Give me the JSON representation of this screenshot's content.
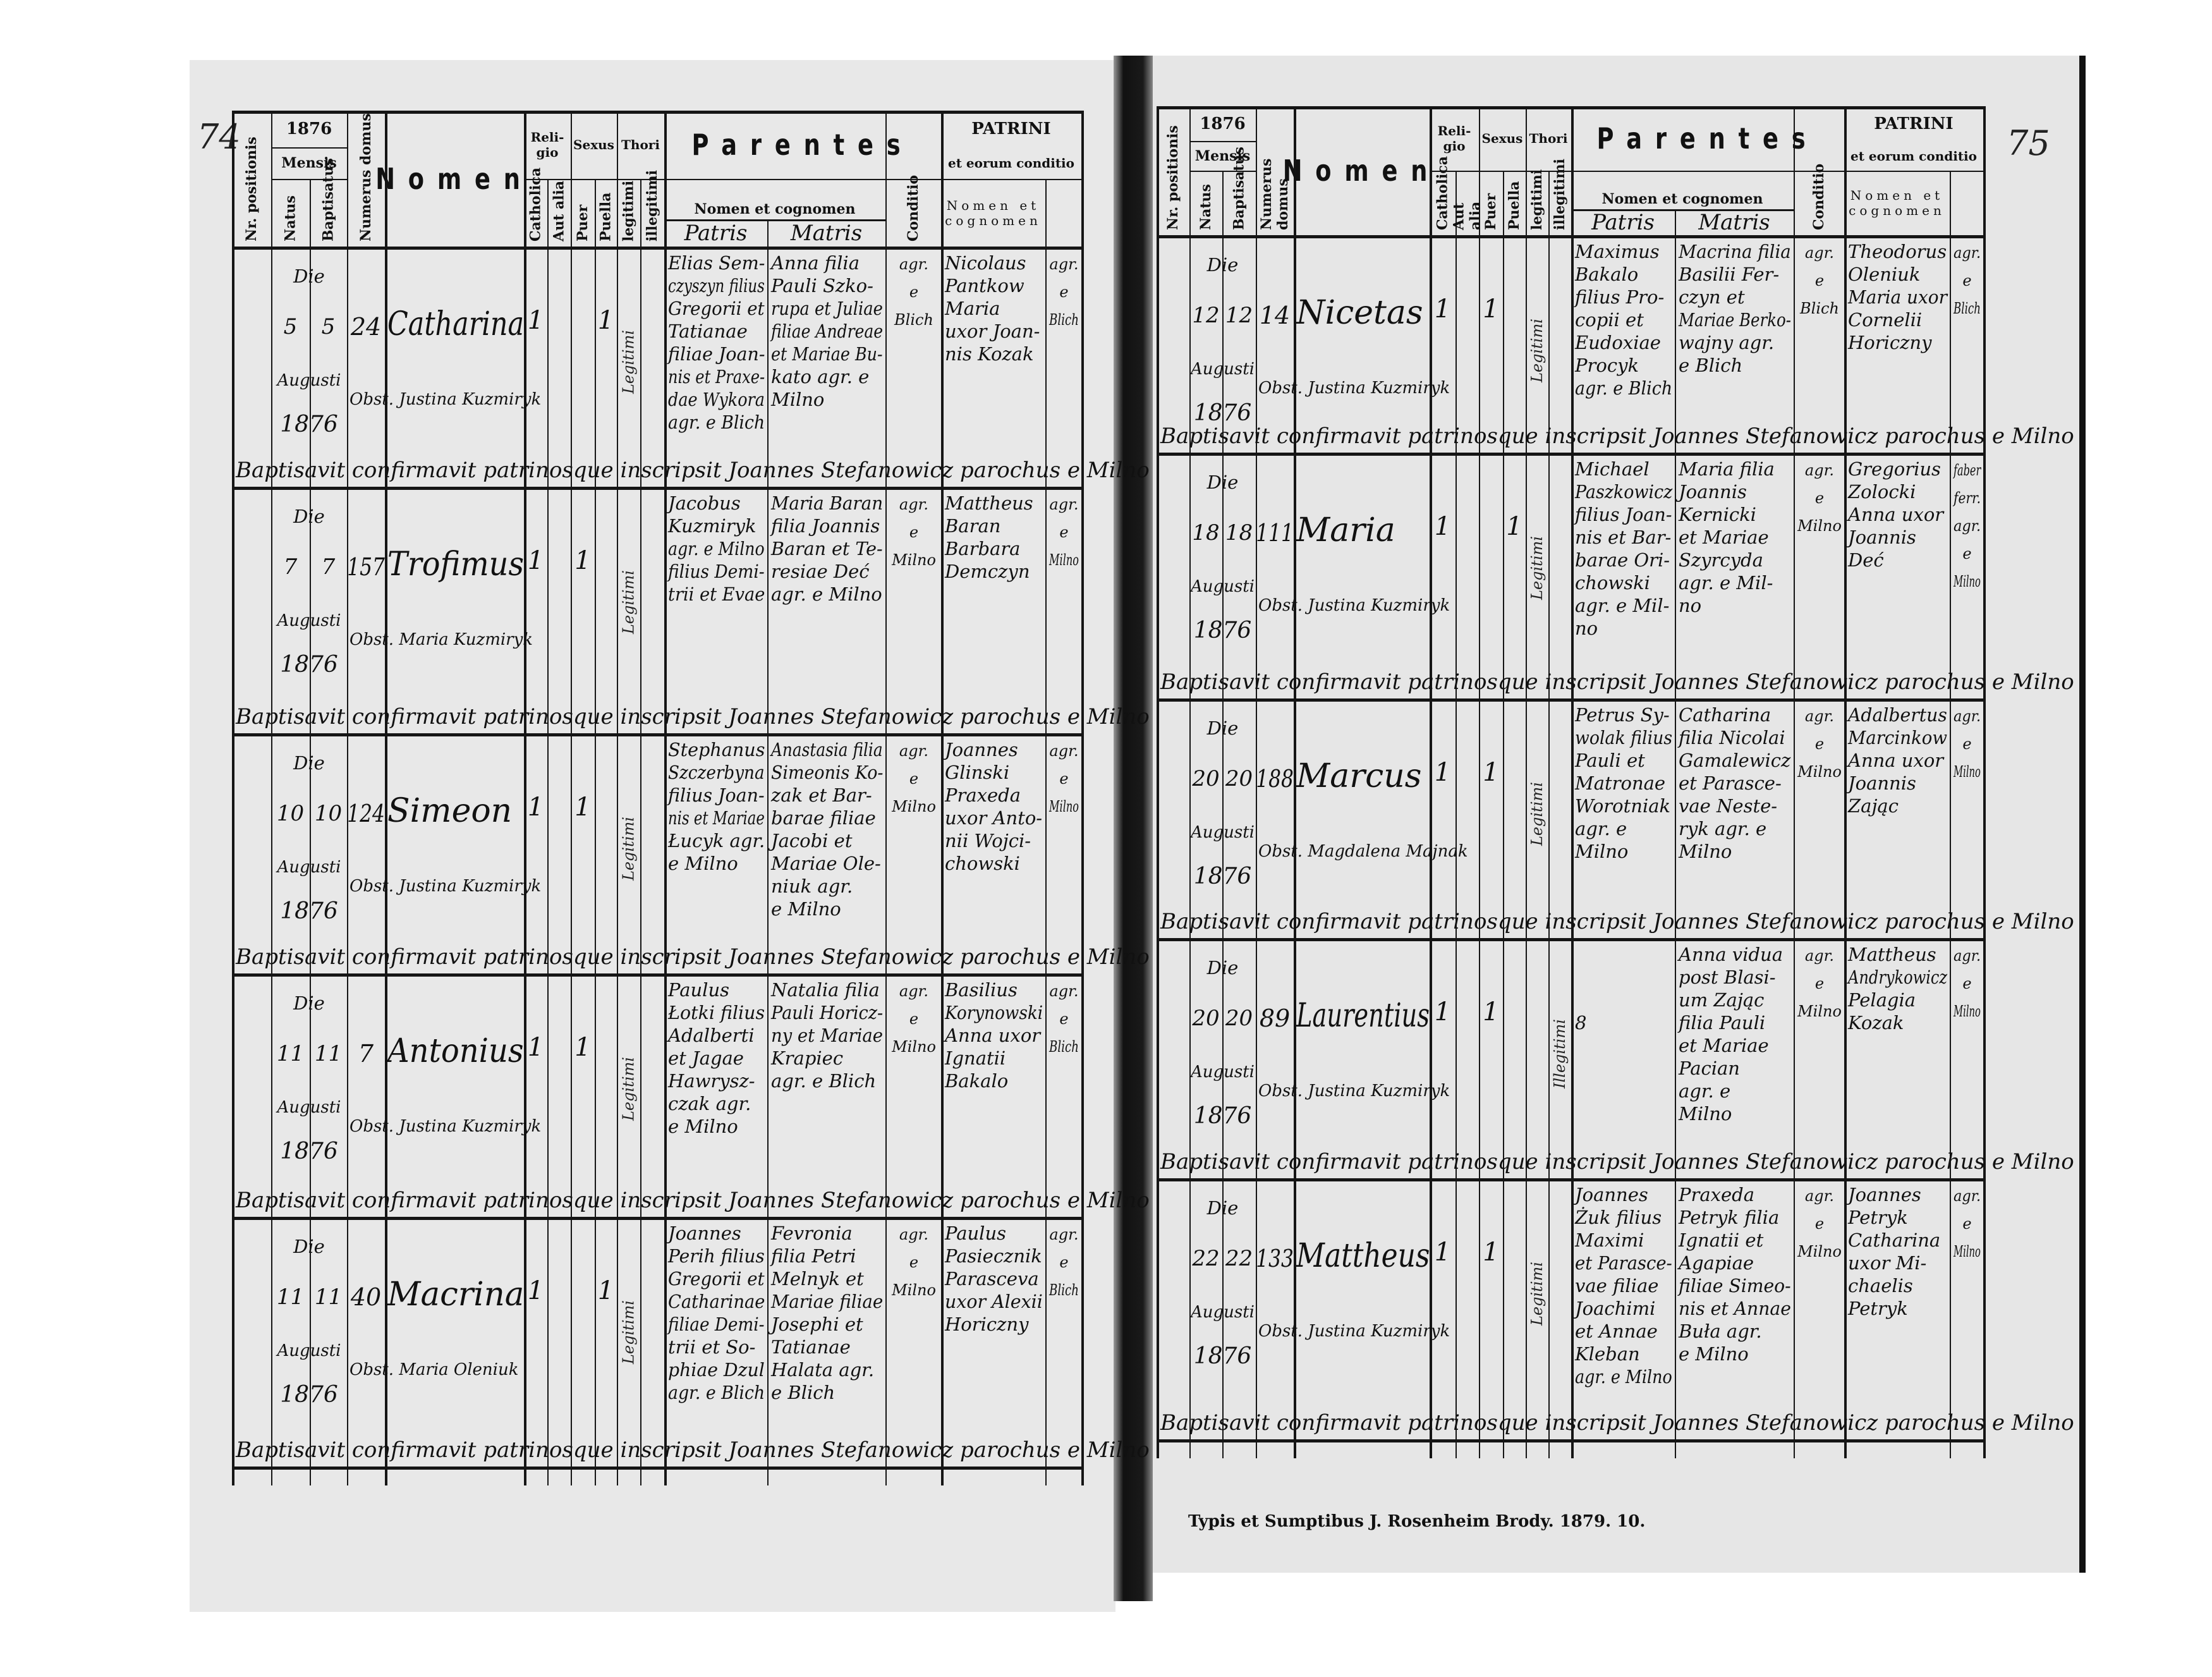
{
  "header": {
    "year": "1876",
    "nr_positionis": "Nr. positionis",
    "mensis": "Mensis",
    "natus": "Natus",
    "baptisatus": "Baptisatus",
    "numerus_domus": "Numerus domus",
    "nomen": "Nomen",
    "religio": "Reli- gio",
    "catholica": "Catholica",
    "aut_alia": "Aut alia",
    "sexus": "Sexus",
    "puer": "Puer",
    "puella": "Puella",
    "thori": "Thori",
    "legitimi": "legitimi",
    "illegitimi": "illegitimi",
    "parentes": "Parentes",
    "nomen_et_cognomen": "Nomen et cognomen",
    "patris": "Patris",
    "matris": "Matris",
    "conditio": "Conditio",
    "patrini": "PATRINI",
    "patrini_sub": "et eorum conditio",
    "patrini_nomen": "Nomen et cognomen"
  },
  "pages": [
    {
      "page_number": "74",
      "entries": [
        {
          "die": "Die",
          "natus": "5",
          "baptisatus": "5",
          "mensis": "Augusti",
          "annus": "1876",
          "domus": "24",
          "nomen": "Catharina",
          "obstetrix": "Obst. Justina Kuzmiryk",
          "catholica": "1",
          "puer": "",
          "puella": "1",
          "legitimi": "Legitimi",
          "illegitimi": "",
          "patris": [
            "Elias Sem-",
            "czyszyn filius",
            "Gregorii et",
            "Tatianae",
            "filiae Joan-",
            "nis et Praxe-",
            "dae Wykora",
            "agr. e Blich"
          ],
          "matris": [
            "Anna filia",
            "Pauli Szko-",
            "rupa et Juliae",
            "filiae Andreae",
            "et Mariae Bu-",
            "kato agr. e",
            "Milno"
          ],
          "conditio": [
            "agr.",
            "e",
            "Blich"
          ],
          "patrini": [
            "Nicolaus",
            "Pantkow",
            "Maria",
            "uxor Joan-",
            "nis Kozak"
          ],
          "patrini_conditio": [
            "agr.",
            "e",
            "Blich"
          ],
          "baptisavit": "Baptisavit confirmavit patrinosque inscripsit Joannes Stefanowicz parochus e Milno"
        },
        {
          "die": "Die",
          "natus": "7",
          "baptisatus": "7",
          "mensis": "Augusti",
          "annus": "1876",
          "domus": "157",
          "nomen": "Trofimus",
          "obstetrix": "Obst. Maria Kuzmiryk",
          "catholica": "1",
          "puer": "1",
          "puella": "",
          "legitimi": "Legitimi",
          "illegitimi": "",
          "patris": [
            "Jacobus",
            "Kuzmiryk",
            "agr. e Milno",
            "filius Demi-",
            "trii et Evae"
          ],
          "matris": [
            "Maria Baran",
            "filia Joannis",
            "Baran et Te-",
            "resiae Deć",
            "agr. e Milno"
          ],
          "conditio": [
            "agr.",
            "e",
            "Milno"
          ],
          "patrini": [
            "Mattheus",
            "Baran",
            "Barbara",
            "Demczyn"
          ],
          "patrini_conditio": [
            "agr.",
            "e",
            "Milno"
          ],
          "baptisavit": "Baptisavit confirmavit patrinosque inscripsit Joannes Stefanowicz parochus e Milno"
        },
        {
          "die": "Die",
          "natus": "10",
          "baptisatus": "10",
          "mensis": "Augusti",
          "annus": "1876",
          "domus": "124",
          "nomen": "Simeon",
          "obstetrix": "Obst. Justina Kuzmiryk",
          "catholica": "1",
          "puer": "1",
          "puella": "",
          "legitimi": "Legitimi",
          "illegitimi": "",
          "patris": [
            "Stephanus",
            "Szczerbyna",
            "filius Joan-",
            "nis et Mariae",
            "Łucyk agr.",
            "e Milno"
          ],
          "matris": [
            "Anastasia filia",
            "Simeonis Ko-",
            "zak et Bar-",
            "barae filiae",
            "Jacobi et",
            "Mariae Ole-",
            "niuk agr.",
            "e Milno"
          ],
          "conditio": [
            "agr.",
            "e",
            "Milno"
          ],
          "patrini": [
            "Joannes",
            "Glinski",
            "Praxeda",
            "uxor Anto-",
            "nii Wojci-",
            "chowski"
          ],
          "patrini_conditio": [
            "agr.",
            "e",
            "Milno"
          ],
          "baptisavit": "Baptisavit confirmavit patrinosque inscripsit Joannes Stefanowicz parochus e Milno"
        },
        {
          "die": "Die",
          "natus": "11",
          "baptisatus": "11",
          "mensis": "Augusti",
          "annus": "1876",
          "domus": "7",
          "nomen": "Antonius",
          "obstetrix": "Obst. Justina Kuzmiryk",
          "catholica": "1",
          "puer": "1",
          "puella": "",
          "legitimi": "Legitimi",
          "illegitimi": "",
          "patris": [
            "Paulus",
            "Łotki filius",
            "Adalberti",
            "et Jagae",
            "Hawrysz-",
            "czak agr.",
            "e Milno"
          ],
          "matris": [
            "Natalia filia",
            "Pauli Horicz-",
            "ny et Mariae",
            "Krapiec",
            "agr. e Blich"
          ],
          "conditio": [
            "agr.",
            "e",
            "Milno"
          ],
          "patrini": [
            "Basilius",
            "Korynowski",
            "Anna uxor",
            "Ignatii",
            "Bakalo"
          ],
          "patrini_conditio": [
            "agr.",
            "e",
            "Blich"
          ],
          "baptisavit": "Baptisavit confirmavit patrinosque inscripsit Joannes Stefanowicz parochus e Milno"
        },
        {
          "die": "Die",
          "natus": "11",
          "baptisatus": "11",
          "mensis": "Augusti",
          "annus": "1876",
          "domus": "40",
          "nomen": "Macrina",
          "obstetrix": "Obst. Maria Oleniuk",
          "catholica": "1",
          "puer": "",
          "puella": "1",
          "legitimi": "Legitimi",
          "illegitimi": "",
          "patris": [
            "Joannes",
            "Perih filius",
            "Gregorii et",
            "Catharinae",
            "filiae Demi-",
            "trii et So-",
            "phiae Dzul",
            "agr. e Blich"
          ],
          "matris": [
            "Fevronia",
            "filia Petri",
            "Melnyk et",
            "Mariae filiae",
            "Josephi et",
            "Tatianae",
            "Halata agr.",
            "e Blich"
          ],
          "conditio": [
            "agr.",
            "e",
            "Milno"
          ],
          "patrini": [
            "Paulus",
            "Pasiecznik",
            "Parasceva",
            "uxor Alexii",
            "Horiczny"
          ],
          "patrini_conditio": [
            "agr.",
            "e",
            "Blich"
          ],
          "baptisavit": "Baptisavit confirmavit patrinosque inscripsit Joannes Stefanowicz parochus e Milno"
        }
      ]
    },
    {
      "page_number": "75",
      "entries": [
        {
          "die": "Die",
          "natus": "12",
          "baptisatus": "12",
          "mensis": "Augusti",
          "annus": "1876",
          "domus": "14",
          "nomen": "Nicetas",
          "obstetrix": "Obst. Justina Kuzmiryk",
          "catholica": "1",
          "puer": "1",
          "puella": "",
          "legitimi": "Legitimi",
          "illegitimi": "",
          "patris": [
            "Maximus",
            "Bakalo",
            "filius Pro-",
            "copii et",
            "Eudoxiae",
            "Procyk",
            "agr. e Blich"
          ],
          "matris": [
            "Macrina filia",
            "Basilii Fer-",
            "czyn et",
            "Mariae Berko-",
            "wajny agr.",
            "e Blich"
          ],
          "conditio": [
            "agr.",
            "e",
            "Blich"
          ],
          "patrini": [
            "Theodorus",
            "Oleniuk",
            "Maria uxor",
            "Cornelii",
            "Horiczny"
          ],
          "patrini_conditio": [
            "agr.",
            "e",
            "Blich"
          ],
          "baptisavit": "Baptisavit confirmavit patrinosque inscripsit Joannes Stefanowicz parochus e Milno"
        },
        {
          "die": "Die",
          "natus": "18",
          "baptisatus": "18",
          "mensis": "Augusti",
          "annus": "1876",
          "domus": "111",
          "nomen": "Maria",
          "obstetrix": "Obst. Justina Kuzmiryk",
          "catholica": "1",
          "puer": "",
          "puella": "1",
          "legitimi": "Legitimi",
          "illegitimi": "",
          "patris": [
            "Michael",
            "Paszkowicz",
            "filius Joan-",
            "nis et Bar-",
            "barae Ori-",
            "chowski",
            "agr. e Mil-",
            "no"
          ],
          "matris": [
            "Maria filia",
            "Joannis",
            "Kernicki",
            "et Mariae",
            "Szyrcyda",
            "agr. e Mil-",
            "no"
          ],
          "conditio": [
            "agr.",
            "e",
            "Milno"
          ],
          "patrini": [
            "Gregorius",
            "Zolocki",
            "Anna uxor",
            "Joannis",
            "Deć"
          ],
          "patrini_conditio": [
            "faber",
            "ferr.",
            "agr.",
            "e",
            "Milno"
          ],
          "baptisavit": "Baptisavit confirmavit patrinosque inscripsit Joannes Stefanowicz parochus e Milno"
        },
        {
          "die": "Die",
          "natus": "20",
          "baptisatus": "20",
          "mensis": "Augusti",
          "annus": "1876",
          "domus": "188",
          "nomen": "Marcus",
          "obstetrix": "Obst. Magdalena Majnak",
          "catholica": "1",
          "puer": "1",
          "puella": "",
          "legitimi": "Legitimi",
          "illegitimi": "",
          "patris": [
            "Petrus Sy-",
            "wolak filius",
            "Pauli et",
            "Matronae",
            "Worotniak",
            "agr. e",
            "Milno"
          ],
          "matris": [
            "Catharina",
            "filia Nicolai",
            "Gamalewicz",
            "et Parasce-",
            "vae Neste-",
            "ryk agr. e",
            "Milno"
          ],
          "conditio": [
            "agr.",
            "e",
            "Milno"
          ],
          "patrini": [
            "Adalbertus",
            "Marcinkow",
            "Anna uxor",
            "Joannis",
            "Zając"
          ],
          "patrini_conditio": [
            "agr.",
            "e",
            "Milno"
          ],
          "baptisavit": "Baptisavit confirmavit patrinosque inscripsit Joannes Stefanowicz parochus e Milno"
        },
        {
          "die": "Die",
          "natus": "20",
          "baptisatus": "20",
          "mensis": "Augusti",
          "annus": "1876",
          "domus": "89",
          "nomen": "Laurentius",
          "obstetrix": "Obst. Justina Kuzmiryk",
          "catholica": "1",
          "puer": "1",
          "puella": "",
          "legitimi": "",
          "illegitimi": "Illegitimi",
          "patris": [
            "",
            "",
            "",
            "8"
          ],
          "matris": [
            "Anna vidua",
            "post Blasi-",
            "um Zając",
            "filia Pauli",
            "et Mariae",
            "Pacian",
            "agr. e",
            "Milno"
          ],
          "conditio": [
            "agr.",
            "e",
            "Milno"
          ],
          "patrini": [
            "Mattheus",
            "Andrykowicz",
            "Pelagia",
            "Kozak"
          ],
          "patrini_conditio": [
            "agr.",
            "e",
            "Milno"
          ],
          "baptisavit": "Baptisavit confirmavit patrinosque inscripsit Joannes Stefanowicz parochus e Milno"
        },
        {
          "die": "Die",
          "natus": "22",
          "baptisatus": "22",
          "mensis": "Augusti",
          "annus": "1876",
          "domus": "133",
          "nomen": "Mattheus",
          "obstetrix": "Obst. Justina Kuzmiryk",
          "catholica": "1",
          "puer": "1",
          "puella": "",
          "legitimi": "Legitimi",
          "illegitimi": "",
          "patris": [
            "Joannes",
            "Żuk filius",
            "Maximi",
            "et Parasce-",
            "vae filiae",
            "Joachimi",
            "et Annae",
            "Kleban",
            "agr. e Milno"
          ],
          "matris": [
            "Praxeda",
            "Petryk filia",
            "Ignatii et",
            "Agapiae",
            "filiae Simeo-",
            "nis et Annae",
            "Buła agr.",
            "e Milno"
          ],
          "conditio": [
            "agr.",
            "e",
            "Milno"
          ],
          "patrini": [
            "Joannes",
            "Petryk",
            "Catharina",
            "uxor Mi-",
            "chaelis",
            "Petryk"
          ],
          "patrini_conditio": [
            "agr.",
            "e",
            "Milno"
          ],
          "baptisavit": "Baptisavit confirmavit patrinosque inscripsit Joannes Stefanowicz parochus e Milno"
        }
      ]
    }
  ],
  "footer": "Typis et Sumptibus J. Rosenheim Brody. 1879. 10."
}
